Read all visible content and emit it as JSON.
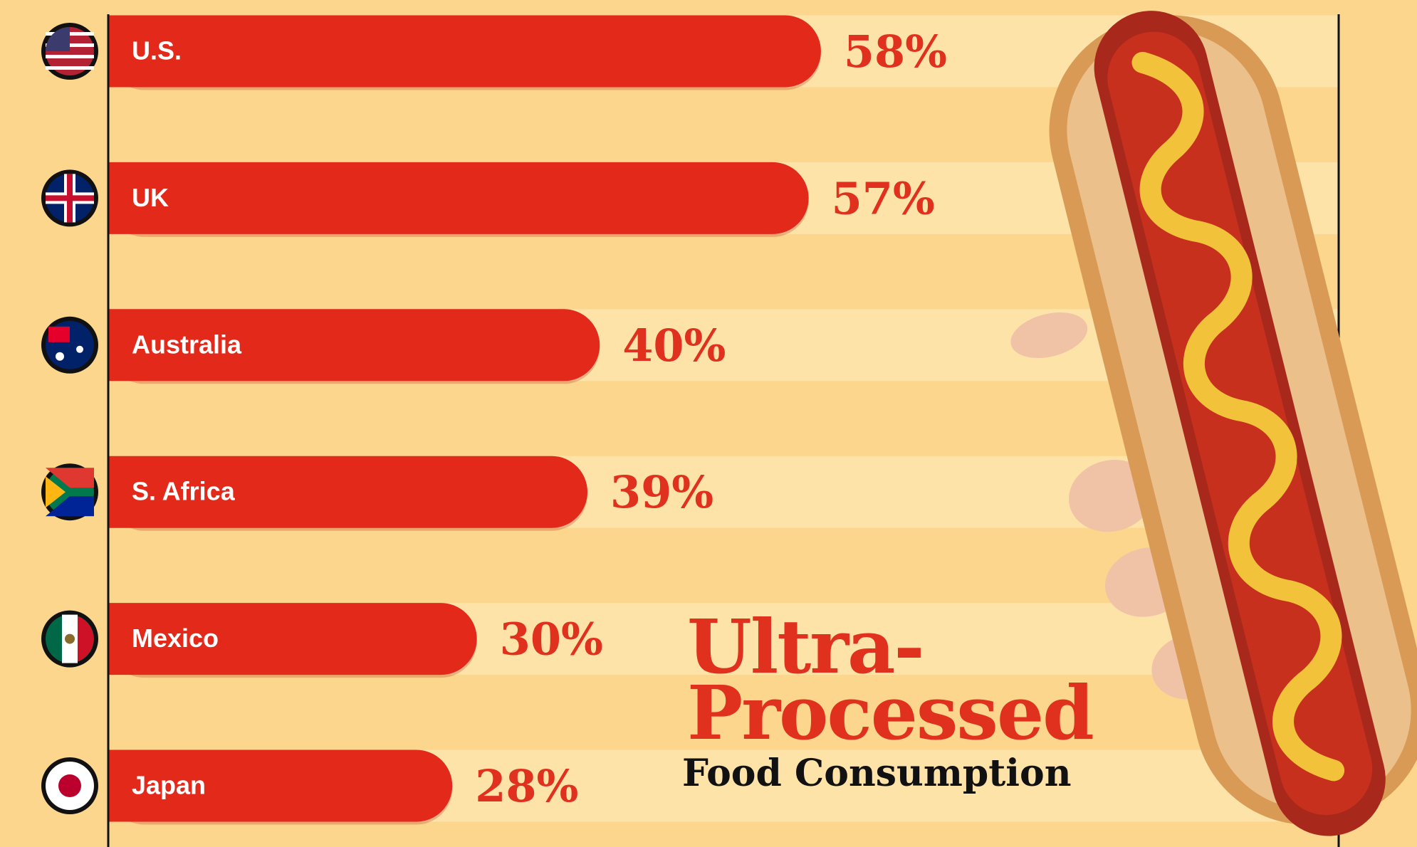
{
  "chart_data": {
    "type": "bar",
    "orientation": "horizontal",
    "title": [
      "Ultra-",
      "Processed"
    ],
    "subtitle": "Food Consumption",
    "categories": [
      "U.S.",
      "UK",
      "Australia",
      "S. Africa",
      "Mexico",
      "Japan"
    ],
    "values": [
      58,
      57,
      40,
      39,
      30,
      28
    ],
    "value_labels": [
      "58%",
      "57%",
      "40%",
      "39%",
      "30%",
      "28%"
    ],
    "color": "#e2291a",
    "xlim": [
      0,
      70
    ]
  }
}
